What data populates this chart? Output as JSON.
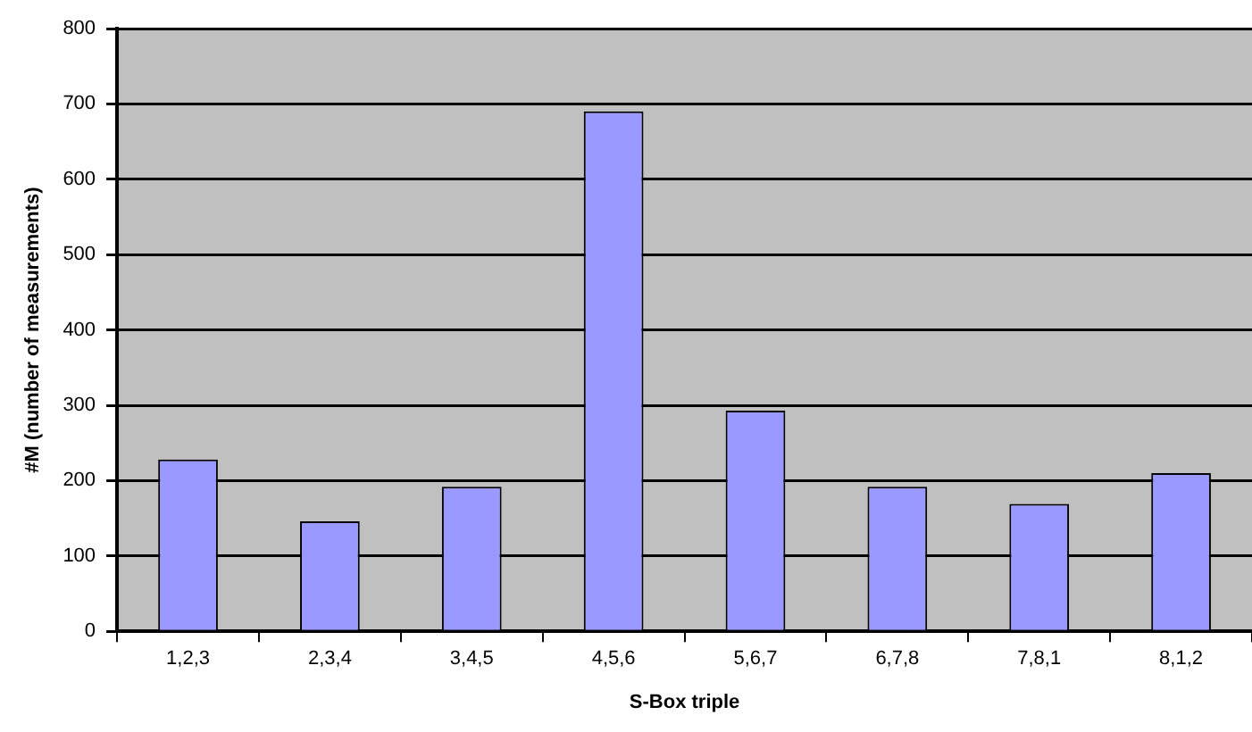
{
  "chart_data": {
    "type": "bar",
    "xlabel": "S-Box triple",
    "ylabel": "#M (number of measurements)",
    "categories": [
      "1,2,3",
      "2,3,4",
      "3,4,5",
      "4,5,6",
      "5,6,7",
      "6,7,8",
      "7,8,1",
      "8,1,2"
    ],
    "values": [
      228,
      146,
      192,
      690,
      293,
      192,
      169,
      210
    ],
    "color": "#9999ff",
    "ylim": [
      0,
      800
    ],
    "yticks": [
      0,
      100,
      200,
      300,
      400,
      500,
      600,
      700,
      800
    ],
    "grid": "y"
  }
}
